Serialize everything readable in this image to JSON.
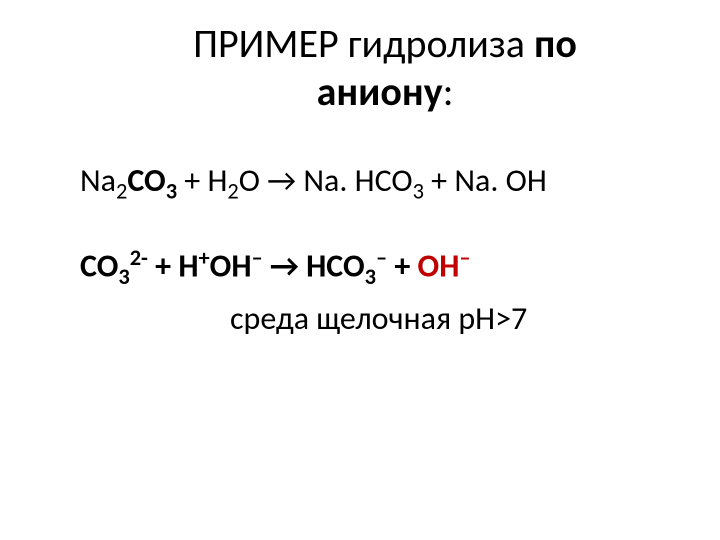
{
  "title": {
    "line1_part1": "ПРИМЕР гидролиза ",
    "line1_part2": "по",
    "line2": "аниону",
    "colon": ":"
  },
  "equation1": {
    "reagent1_main": "Na",
    "reagent1_sub1": "2",
    "reagent1_co": "CO",
    "reagent1_sub2": "3",
    "plus1": " + H",
    "h2o_sub": "2",
    "h2o_o": "O ",
    "arrow": "→",
    "prod1": " Na. HCO",
    "prod1_sub": "3",
    "plus2": " + Na. OH"
  },
  "equation2": {
    "co": "CO",
    "co_sub": "3",
    "co_sup": "2-",
    "plus1": " + H",
    "h_sup": "+",
    "oh": "OH",
    "oh_sup": "–",
    "arrow": " → HCO",
    "hco_sub": "3",
    "hco_sup": "–",
    "plus2": " + ",
    "oh2": "OH",
    "oh2_sup": "–"
  },
  "environment": {
    "text": "среда щелочная рН>7"
  },
  "colors": {
    "text": "#000000",
    "red": "#c00000",
    "background": "#ffffff"
  },
  "fonts": {
    "title_size": 40,
    "body_size": 32,
    "family": "Calibri"
  }
}
